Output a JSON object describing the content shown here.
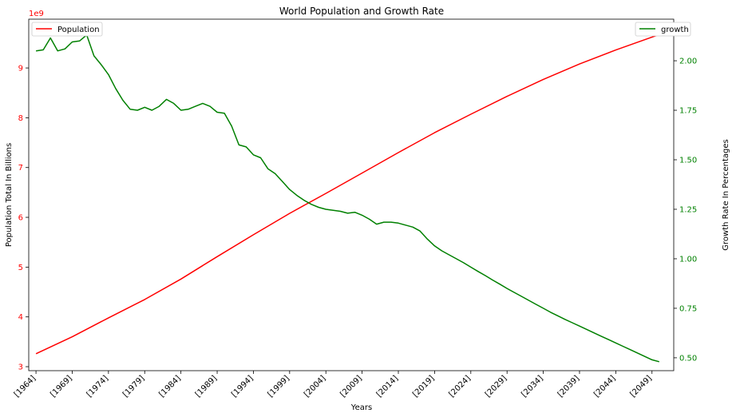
{
  "chart_data": {
    "type": "line",
    "title": "World Population and Growth Rate",
    "xlabel": "Years",
    "ylabel_left": "Population Total In Billions",
    "ylabel_right": "Growth Rate In Percentages",
    "left_offset_label": "1e9",
    "x_tick_labels": [
      "[1964]",
      "[1969]",
      "[1974]",
      "[1979]",
      "[1984]",
      "[1989]",
      "[1994]",
      "[1999]",
      "[2004]",
      "[2009]",
      "[2014]",
      "[2019]",
      "[2024]",
      "[2029]",
      "[2034]",
      "[2039]",
      "[2044]",
      "[2049]"
    ],
    "x_ticks": [
      1964,
      1969,
      1974,
      1979,
      1984,
      1989,
      1994,
      1999,
      2004,
      2009,
      2014,
      2019,
      2024,
      2029,
      2034,
      2039,
      2044,
      2049
    ],
    "xlim": [
      1963,
      2052
    ],
    "ylim_left": [
      2.92,
      9.98
    ],
    "ylim_right": [
      0.435,
      2.21
    ],
    "y_left_ticks": [
      3,
      4,
      5,
      6,
      7,
      8,
      9
    ],
    "y_left_tick_labels": [
      "3",
      "4",
      "5",
      "6",
      "7",
      "8",
      "9"
    ],
    "y_right_ticks": [
      0.5,
      0.75,
      1.0,
      1.25,
      1.5,
      1.75,
      2.0
    ],
    "y_right_tick_labels": [
      "0.50",
      "0.75",
      "1.00",
      "1.25",
      "1.50",
      "1.75",
      "2.00"
    ],
    "grid": false,
    "colors": {
      "population": "#ff0000",
      "growth": "#008000",
      "left_axis": "#ff0000",
      "right_axis": "#008000"
    },
    "series": [
      {
        "name": "Population",
        "axis": "left",
        "color": "#ff0000",
        "x": [
          1964,
          1969,
          1974,
          1979,
          1984,
          1989,
          1994,
          1999,
          2004,
          2009,
          2014,
          2019,
          2024,
          2029,
          2034,
          2039,
          2044,
          2049,
          2050
        ],
        "y": [
          3.26,
          3.6,
          3.98,
          4.35,
          4.76,
          5.21,
          5.65,
          6.08,
          6.48,
          6.89,
          7.3,
          7.7,
          8.07,
          8.43,
          8.77,
          9.08,
          9.36,
          9.62,
          9.67
        ]
      },
      {
        "name": "growth",
        "axis": "right",
        "color": "#008000",
        "x": [
          1964,
          1965,
          1966,
          1967,
          1968,
          1969,
          1970,
          1971,
          1972,
          1973,
          1974,
          1975,
          1976,
          1977,
          1978,
          1979,
          1980,
          1981,
          1982,
          1983,
          1984,
          1985,
          1986,
          1987,
          1988,
          1989,
          1990,
          1991,
          1992,
          1993,
          1994,
          1995,
          1996,
          1997,
          1998,
          1999,
          2000,
          2001,
          2002,
          2003,
          2004,
          2005,
          2006,
          2007,
          2008,
          2009,
          2010,
          2011,
          2012,
          2013,
          2014,
          2015,
          2016,
          2017,
          2018,
          2019,
          2020,
          2021,
          2022,
          2023,
          2024,
          2025,
          2026,
          2027,
          2028,
          2029,
          2030,
          2031,
          2032,
          2033,
          2034,
          2035,
          2036,
          2037,
          2038,
          2039,
          2040,
          2041,
          2042,
          2043,
          2044,
          2045,
          2046,
          2047,
          2048,
          2049,
          2050
        ],
        "y": [
          2.05,
          2.055,
          2.115,
          2.05,
          2.06,
          2.095,
          2.1,
          2.13,
          2.025,
          1.98,
          1.93,
          1.86,
          1.8,
          1.755,
          1.75,
          1.765,
          1.75,
          1.77,
          1.805,
          1.785,
          1.75,
          1.755,
          1.77,
          1.785,
          1.77,
          1.74,
          1.735,
          1.67,
          1.575,
          1.565,
          1.525,
          1.51,
          1.455,
          1.43,
          1.39,
          1.35,
          1.32,
          1.295,
          1.275,
          1.26,
          1.25,
          1.245,
          1.24,
          1.23,
          1.235,
          1.22,
          1.2,
          1.175,
          1.185,
          1.185,
          1.18,
          1.17,
          1.16,
          1.14,
          1.1,
          1.065,
          1.04,
          1.02,
          1.0,
          0.98,
          0.958,
          0.936,
          0.915,
          0.893,
          0.872,
          0.85,
          0.83,
          0.81,
          0.79,
          0.77,
          0.75,
          0.73,
          0.712,
          0.694,
          0.677,
          0.66,
          0.643,
          0.626,
          0.609,
          0.592,
          0.575,
          0.558,
          0.541,
          0.524,
          0.507,
          0.49,
          0.48
        ]
      }
    ]
  }
}
